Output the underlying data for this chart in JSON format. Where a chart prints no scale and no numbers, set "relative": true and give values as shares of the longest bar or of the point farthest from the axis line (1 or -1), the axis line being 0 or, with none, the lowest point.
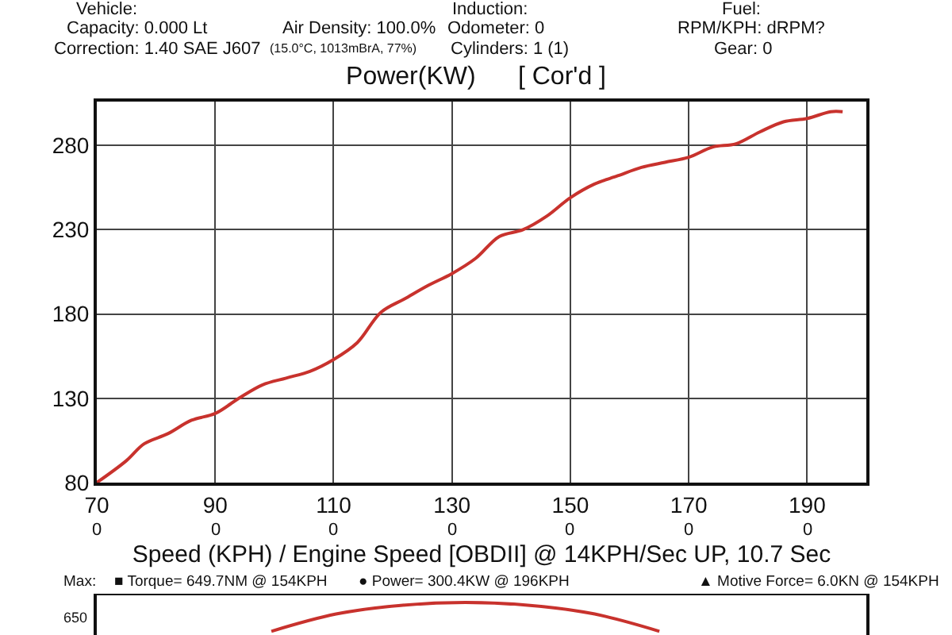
{
  "chart_data": [
    {
      "type": "line",
      "title": "Power(KW)      [ Cor'd ]",
      "xlabel": "Speed (KPH) / Engine Speed [OBDII] @ 14KPH/Sec UP, 10.7 Sec",
      "annotations": [
        "Vehicle:",
        "Capacity: 0.000 Lt",
        "Correction: 1.40 SAE J607",
        "Air Density: 100.0%",
        "(15.0°C, 1013mBrA, 77%)",
        "Induction:",
        "Odometer: 0",
        "Cylinders: 1 (1)",
        "Fuel:",
        "RPM/KPH: dRPM?",
        "Gear: 0",
        "Max:",
        "■ Torque= 649.7NM @ 154KPH",
        "● Power= 300.4KW @ 196KPH",
        "▲ Motive Force= 6.0KN @ 154KPH",
        "0",
        "0",
        "0",
        "0",
        "0",
        "0",
        "0"
      ],
      "x": [
        70,
        75,
        78,
        82,
        86,
        90,
        94,
        98,
        102,
        106,
        110,
        114,
        118,
        122,
        126,
        130,
        134,
        138,
        142,
        146,
        150,
        154,
        158,
        162,
        166,
        170,
        174,
        178,
        182,
        186,
        190,
        194,
        196
      ],
      "series": [
        {
          "color": "#c8322d",
          "values": [
            80,
            93,
            103,
            109,
            117,
            121,
            130,
            138,
            142,
            146,
            153,
            163,
            181,
            189,
            197,
            204,
            213,
            226,
            230,
            238,
            249,
            257,
            262,
            267,
            270,
            273,
            279,
            281,
            288,
            294,
            296,
            300,
            300
          ]
        }
      ],
      "xlim": [
        70,
        200
      ],
      "xticks": [
        70,
        90,
        110,
        130,
        150,
        170,
        190
      ],
      "ylim": [
        80,
        306
      ],
      "yticks": [
        80,
        130,
        180,
        230,
        280
      ],
      "grid": true,
      "marker": "none",
      "line_style": "solid"
    },
    {
      "type": "line",
      "relative": true,
      "annotations": [
        "650"
      ],
      "categories": [
        null,
        null,
        null,
        null,
        null,
        null,
        null
      ],
      "series": [
        {
          "color": "#c8322d",
          "values": [
            0,
            0.6,
            0.9,
            1,
            0.9,
            0.6,
            0
          ]
        }
      ],
      "marker": "none",
      "line_style": "solid"
    }
  ]
}
